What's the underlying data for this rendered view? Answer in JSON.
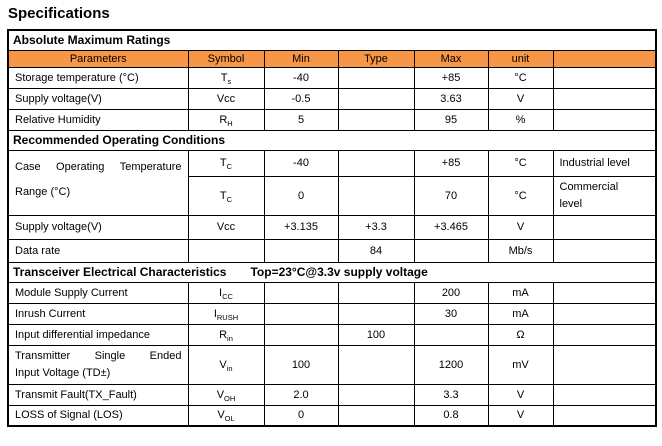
{
  "page_title": "Specifications",
  "colors": {
    "accent": "#F79646",
    "border": "#000000",
    "text": "#000000",
    "background": "#FFFFFF"
  },
  "table": {
    "columns": [
      "Parameters",
      "Symbol",
      "Min",
      "Type",
      "Max",
      "unit",
      ""
    ],
    "rows": [
      {
        "type": "section",
        "label": "Absolute Maximum Ratings",
        "note": ""
      },
      {
        "type": "header"
      },
      {
        "type": "data",
        "param": "Storage temperature (°C)",
        "symbol": {
          "base": "T",
          "sub": "s"
        },
        "min": "-40",
        "typ": "",
        "max": "+85",
        "unit": "°C",
        "note": ""
      },
      {
        "type": "data",
        "param": "Supply voltage(V)",
        "symbol": {
          "base": "Vcc",
          "sub": ""
        },
        "min": "-0.5",
        "typ": "",
        "max": "3.63",
        "unit": "V",
        "note": ""
      },
      {
        "type": "data",
        "param": "Relative Humidity",
        "symbol": {
          "base": "R",
          "sub": "H"
        },
        "min": "5",
        "typ": "",
        "max": "95",
        "unit": "%",
        "note": ""
      },
      {
        "type": "section",
        "label": "Recommended Operating Conditions",
        "note": ""
      },
      {
        "type": "data",
        "param": "Case Operating Temperature\nRange (°C)",
        "param_rowspan": 2,
        "symbol": {
          "base": "T",
          "sub": "C"
        },
        "min": "-40",
        "typ": "",
        "max": "+85",
        "unit": "°C",
        "note": "Industrial level"
      },
      {
        "type": "data",
        "param": null,
        "symbol": {
          "base": "T",
          "sub": "C"
        },
        "min": "0",
        "typ": "",
        "max": "70",
        "unit": "°C",
        "note": "Commercial\nlevel"
      },
      {
        "type": "data",
        "param": "Supply voltage(V)",
        "symbol": {
          "base": "Vcc",
          "sub": ""
        },
        "min": "+3.135",
        "typ": "+3.3",
        "max": "+3.465",
        "unit": "V",
        "note": ""
      },
      {
        "type": "data",
        "param": "Data rate",
        "symbol": {
          "base": "",
          "sub": ""
        },
        "min": "",
        "typ": "84",
        "max": "",
        "unit": "Mb/s",
        "note": ""
      },
      {
        "type": "section",
        "label": "Transceiver Electrical Characteristics",
        "note": "Top=23°C@3.3v supply voltage"
      },
      {
        "type": "data",
        "param": "Module Supply Current",
        "symbol": {
          "base": "I",
          "sub": "CC"
        },
        "min": "",
        "typ": "",
        "max": "200",
        "unit": "mA",
        "note": ""
      },
      {
        "type": "data",
        "param": "Inrush Current",
        "symbol": {
          "base": "I",
          "sub": "RUSH"
        },
        "min": "",
        "typ": "",
        "max": "30",
        "unit": "mA",
        "note": ""
      },
      {
        "type": "data",
        "param": "Input differential impedance",
        "symbol": {
          "base": "R",
          "sub": "in"
        },
        "min": "",
        "typ": "100",
        "max": "",
        "unit": "Ω",
        "note": ""
      },
      {
        "type": "data",
        "param": "Transmitter Single Ended\nInput Voltage (TD±)",
        "symbol": {
          "base": "V",
          "sub": "in"
        },
        "min": "100",
        "typ": "",
        "max": "1200",
        "unit": "mV",
        "note": ""
      },
      {
        "type": "data",
        "param": "Transmit Fault(TX_Fault)",
        "symbol": {
          "base": "V",
          "sub": "OH"
        },
        "min": "2.0",
        "typ": "",
        "max": "3.3",
        "unit": "V",
        "note": ""
      },
      {
        "type": "data",
        "param": "LOSS of Signal (LOS)",
        "symbol": {
          "base": "V",
          "sub": "OL"
        },
        "min": "0",
        "typ": "",
        "max": "0.8",
        "unit": "V",
        "note": ""
      }
    ]
  }
}
